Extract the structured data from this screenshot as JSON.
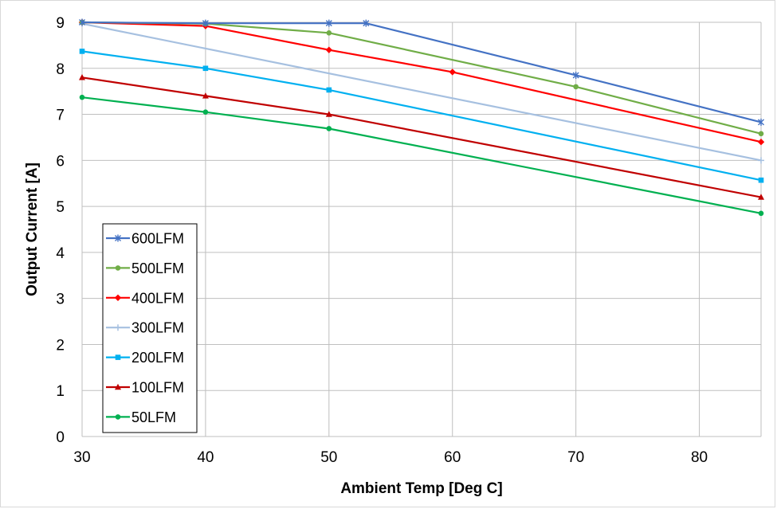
{
  "chart_data": {
    "type": "line",
    "xlabel": "Ambient Temp [Deg C]",
    "ylabel": "Output Current [A]",
    "xlim": [
      30,
      85
    ],
    "ylim": [
      0,
      9
    ],
    "xticks": [
      30,
      40,
      50,
      60,
      70,
      80
    ],
    "yticks": [
      0,
      1,
      2,
      3,
      4,
      5,
      6,
      7,
      8,
      9
    ],
    "grid": true,
    "legend_position": "bottom-left",
    "series": [
      {
        "name": "600LFM",
        "color": "#4472c4",
        "marker": "star",
        "points": [
          [
            30,
            9.0
          ],
          [
            40,
            8.98
          ],
          [
            50,
            8.98
          ],
          [
            53,
            8.98
          ],
          [
            70,
            7.85
          ],
          [
            85,
            6.83
          ]
        ]
      },
      {
        "name": "500LFM",
        "color": "#70ad47",
        "marker": "circle",
        "points": [
          [
            30,
            9.0
          ],
          [
            40,
            8.97
          ],
          [
            50,
            8.77
          ],
          [
            70,
            7.6
          ],
          [
            85,
            6.58
          ]
        ]
      },
      {
        "name": "400LFM",
        "color": "#ff0000",
        "marker": "diamond",
        "points": [
          [
            30,
            9.0
          ],
          [
            40,
            8.92
          ],
          [
            50,
            8.4
          ],
          [
            60,
            7.92
          ],
          [
            85,
            6.4
          ]
        ]
      },
      {
        "name": "300LFM",
        "color": "#a6c0e0",
        "marker": "plus",
        "points": [
          [
            30,
            8.97
          ],
          [
            85,
            6.0
          ]
        ]
      },
      {
        "name": "200LFM",
        "color": "#00b0f0",
        "marker": "square",
        "points": [
          [
            30,
            8.37
          ],
          [
            40,
            8.0
          ],
          [
            50,
            7.53
          ],
          [
            85,
            5.57
          ]
        ]
      },
      {
        "name": "100LFM",
        "color": "#c00000",
        "marker": "triangle",
        "points": [
          [
            30,
            7.8
          ],
          [
            40,
            7.4
          ],
          [
            50,
            7.0
          ],
          [
            85,
            5.2
          ]
        ]
      },
      {
        "name": "50LFM",
        "color": "#00b050",
        "marker": "circle",
        "points": [
          [
            30,
            7.37
          ],
          [
            40,
            7.05
          ],
          [
            50,
            6.69
          ],
          [
            85,
            4.85
          ]
        ]
      }
    ]
  }
}
